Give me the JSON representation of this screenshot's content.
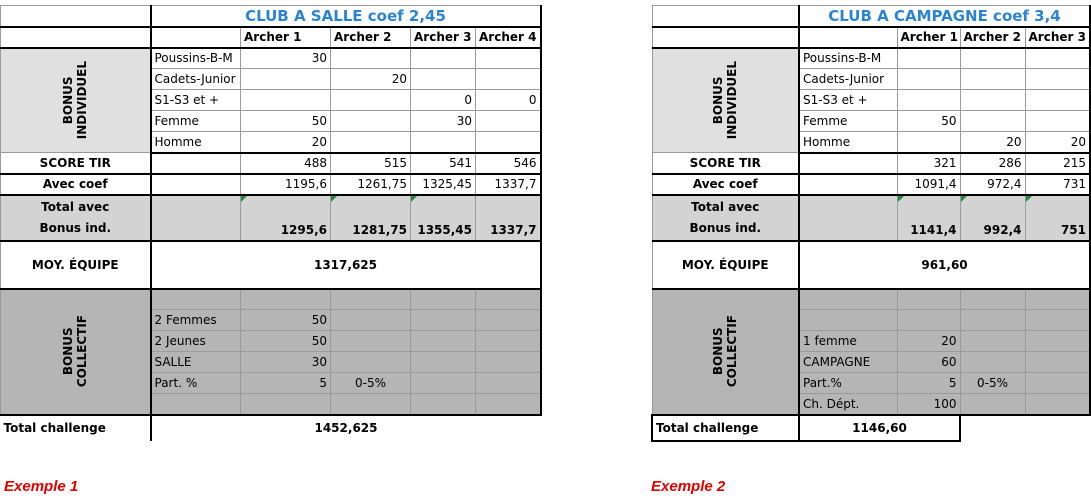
{
  "example1": {
    "title": "CLUB A SALLE coef 2,45",
    "archers": [
      "Archer 1",
      "Archer 2",
      "Archer 3",
      "Archer 4"
    ],
    "bonus_individuel_label": "BONUS\nINDIVIDUEL",
    "individual_rows": [
      {
        "label": "Poussins-B-M",
        "values": [
          "30",
          "",
          "",
          ""
        ]
      },
      {
        "label": "Cadets-Junior",
        "values": [
          "",
          "20",
          "",
          ""
        ]
      },
      {
        "label": "S1-S3 et +",
        "values": [
          "",
          "",
          "0",
          "0"
        ]
      },
      {
        "label": "Femme",
        "values": [
          "50",
          "",
          "30",
          ""
        ]
      },
      {
        "label": "Homme",
        "values": [
          "20",
          "",
          "",
          ""
        ]
      }
    ],
    "score_label": "SCORE TIR",
    "scores": [
      "488",
      "515",
      "541",
      "546"
    ],
    "coef_label": "Avec coef",
    "coef_values": [
      "1195,6",
      "1261,75",
      "1325,45",
      "1337,7"
    ],
    "total_label_1": "Total avec",
    "total_label_2": "Bonus ind.",
    "totals": [
      "1295,6",
      "1281,75",
      "1355,45",
      "1337,7"
    ],
    "moy_label": "MOY. ÉQUIPE",
    "moy_value": "1317,625",
    "bonus_collectif_label": "BONUS\nCOLLECTIF",
    "collective_rows": [
      {
        "label": "",
        "value": "",
        "extra": ""
      },
      {
        "label": "2 Femmes",
        "value": "50",
        "extra": ""
      },
      {
        "label": "2 Jeunes",
        "value": "50",
        "extra": ""
      },
      {
        "label": "SALLE",
        "value": "30",
        "extra": ""
      },
      {
        "label": "Part. %",
        "value": "5",
        "extra": "0-5%"
      },
      {
        "label": "",
        "value": "",
        "extra": ""
      }
    ],
    "total_challenge_label": "Total challenge",
    "total_challenge_value": "1452,625",
    "caption": "Exemple 1"
  },
  "example2": {
    "title": "CLUB A CAMPAGNE coef 3,4",
    "archers": [
      "Archer 1",
      "Archer 2",
      "Archer 3"
    ],
    "bonus_individuel_label": "BONUS\nINDIVIDUEL",
    "individual_rows": [
      {
        "label": "Poussins-B-M",
        "values": [
          "",
          "",
          ""
        ]
      },
      {
        "label": "Cadets-Junior",
        "values": [
          "",
          "",
          ""
        ]
      },
      {
        "label": "S1-S3 et +",
        "values": [
          "",
          "",
          ""
        ]
      },
      {
        "label": "Femme",
        "values": [
          "50",
          "",
          ""
        ]
      },
      {
        "label": "Homme",
        "values": [
          "",
          "20",
          "20"
        ]
      }
    ],
    "score_label": "SCORE TIR",
    "scores": [
      "321",
      "286",
      "215"
    ],
    "coef_label": "Avec coef",
    "coef_values": [
      "1091,4",
      "972,4",
      "731"
    ],
    "total_label_1": "Total avec",
    "total_label_2": "Bonus ind.",
    "totals": [
      "1141,4",
      "992,4",
      "751"
    ],
    "moy_label": "MOY. ÉQUIPE",
    "moy_value": "961,60",
    "bonus_collectif_label": "BONUS\nCOLLECTIF",
    "collective_rows": [
      {
        "label": "",
        "value": "",
        "extra": ""
      },
      {
        "label": "",
        "value": "",
        "extra": ""
      },
      {
        "label": "1 femme",
        "value": "20",
        "extra": ""
      },
      {
        "label": "CAMPAGNE",
        "value": "60",
        "extra": ""
      },
      {
        "label": "Part.%",
        "value": "5",
        "extra": "0-5%"
      },
      {
        "label": "Ch. Dépt.",
        "value": "100",
        "extra": ""
      }
    ],
    "total_challenge_label": "Total challenge",
    "total_challenge_value": "1146,60",
    "caption": "Exemple 2"
  }
}
